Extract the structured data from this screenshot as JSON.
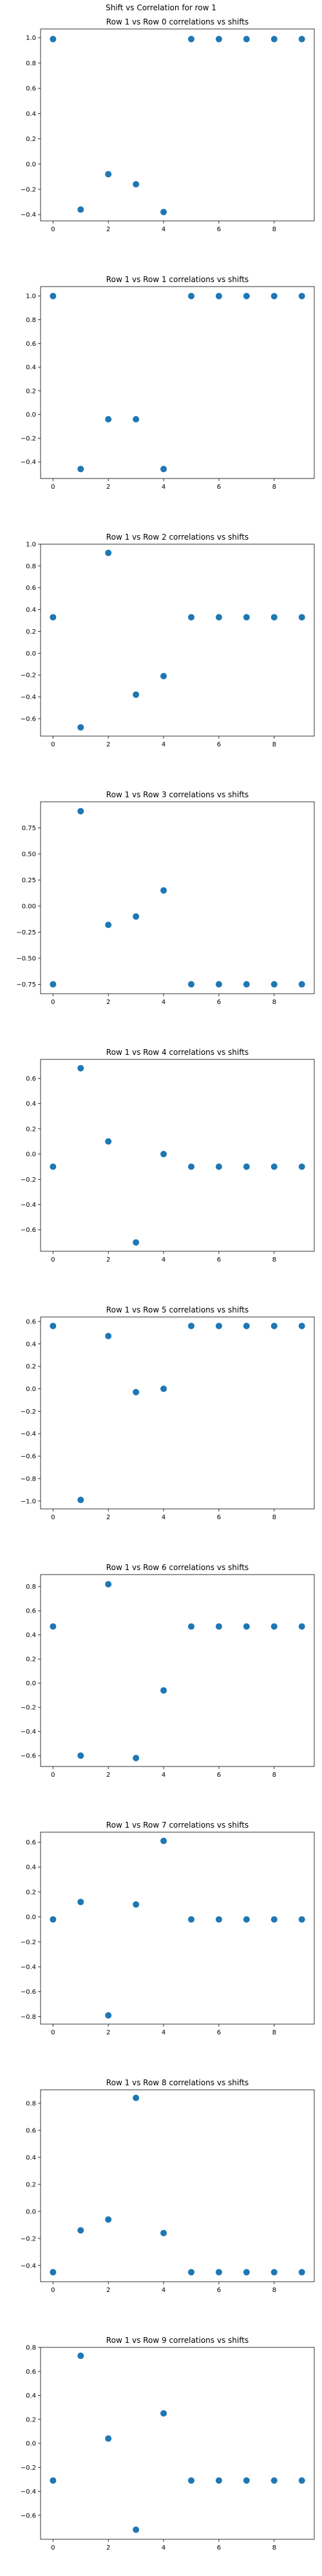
{
  "figure": {
    "suptitle": "Shift vs Correlation for row 1",
    "marker_color": "#1f77b4"
  },
  "chart_data": [
    {
      "type": "scatter",
      "title": "Row 1 vs Row 0 correlations vs shifts",
      "x": [
        0,
        1,
        2,
        3,
        4,
        5,
        6,
        7,
        8,
        9
      ],
      "y": [
        0.99,
        -0.36,
        -0.08,
        -0.16,
        -0.38,
        0.99,
        0.99,
        0.99,
        0.99,
        0.99
      ],
      "xlim": [
        -0.45,
        9.45
      ],
      "ylim": [
        -0.45,
        1.07
      ],
      "xticks": [
        0,
        2,
        4,
        6,
        8
      ],
      "yticks": [
        -0.4,
        -0.2,
        0.0,
        0.2,
        0.4,
        0.6,
        0.8,
        1.0
      ],
      "ytick_labels": [
        "−0.4",
        "−0.2",
        "0.0",
        "0.2",
        "0.4",
        "0.6",
        "0.8",
        "1.0"
      ],
      "grid": false
    },
    {
      "type": "scatter",
      "title": "Row 1 vs Row 1 correlations vs shifts",
      "x": [
        0,
        1,
        2,
        3,
        4,
        5,
        6,
        7,
        8,
        9
      ],
      "y": [
        1.0,
        -0.46,
        -0.04,
        -0.04,
        -0.46,
        1.0,
        1.0,
        1.0,
        1.0,
        1.0
      ],
      "xlim": [
        -0.45,
        9.45
      ],
      "ylim": [
        -0.54,
        1.08
      ],
      "xticks": [
        0,
        2,
        4,
        6,
        8
      ],
      "yticks": [
        -0.4,
        -0.2,
        0.0,
        0.2,
        0.4,
        0.6,
        0.8,
        1.0
      ],
      "ytick_labels": [
        "−0.4",
        "−0.2",
        "0.0",
        "0.2",
        "0.4",
        "0.6",
        "0.8",
        "1.0"
      ],
      "grid": false
    },
    {
      "type": "scatter",
      "title": "Row 1 vs Row 2 correlations vs shifts",
      "x": [
        0,
        1,
        2,
        3,
        4,
        5,
        6,
        7,
        8,
        9
      ],
      "y": [
        0.33,
        -0.68,
        0.92,
        -0.38,
        -0.21,
        0.33,
        0.33,
        0.33,
        0.33,
        0.33
      ],
      "xlim": [
        -0.45,
        9.45
      ],
      "ylim": [
        -0.76,
        1.0
      ],
      "xticks": [
        0,
        2,
        4,
        6,
        8
      ],
      "yticks": [
        -0.6,
        -0.4,
        -0.2,
        0.0,
        0.2,
        0.4,
        0.6,
        0.8,
        1.0
      ],
      "ytick_labels": [
        "−0.6",
        "−0.4",
        "−0.2",
        "0.0",
        "0.2",
        "0.4",
        "0.6",
        "0.8",
        "1.0"
      ],
      "grid": false
    },
    {
      "type": "scatter",
      "title": "Row 1 vs Row 3 correlations vs shifts",
      "x": [
        0,
        1,
        2,
        3,
        4,
        5,
        6,
        7,
        8,
        9
      ],
      "y": [
        -0.75,
        0.91,
        -0.18,
        -0.1,
        0.15,
        -0.75,
        -0.75,
        -0.75,
        -0.75,
        -0.75
      ],
      "xlim": [
        -0.45,
        9.45
      ],
      "ylim": [
        -0.84,
        1.0
      ],
      "xticks": [
        0,
        2,
        4,
        6,
        8
      ],
      "yticks": [
        -0.75,
        -0.5,
        -0.25,
        0.0,
        0.25,
        0.5,
        0.75
      ],
      "ytick_labels": [
        "−0.75",
        "−0.50",
        "−0.25",
        "0.00",
        "0.25",
        "0.50",
        "0.75"
      ],
      "grid": false
    },
    {
      "type": "scatter",
      "title": "Row 1 vs Row 4 correlations vs shifts",
      "x": [
        0,
        1,
        2,
        3,
        4,
        5,
        6,
        7,
        8,
        9
      ],
      "y": [
        -0.1,
        0.68,
        0.1,
        -0.7,
        0.0,
        -0.1,
        -0.1,
        -0.1,
        -0.1,
        -0.1
      ],
      "xlim": [
        -0.45,
        9.45
      ],
      "ylim": [
        -0.77,
        0.75
      ],
      "xticks": [
        0,
        2,
        4,
        6,
        8
      ],
      "yticks": [
        -0.6,
        -0.4,
        -0.2,
        0.0,
        0.2,
        0.4,
        0.6
      ],
      "ytick_labels": [
        "−0.6",
        "−0.4",
        "−0.2",
        "0.0",
        "0.2",
        "0.4",
        "0.6"
      ],
      "grid": false
    },
    {
      "type": "scatter",
      "title": "Row 1 vs Row 5 correlations vs shifts",
      "x": [
        0,
        1,
        2,
        3,
        4,
        5,
        6,
        7,
        8,
        9
      ],
      "y": [
        0.56,
        -0.99,
        0.47,
        -0.03,
        0.0,
        0.56,
        0.56,
        0.56,
        0.56,
        0.56
      ],
      "xlim": [
        -0.45,
        9.45
      ],
      "ylim": [
        -1.07,
        0.64
      ],
      "xticks": [
        0,
        2,
        4,
        6,
        8
      ],
      "yticks": [
        -1.0,
        -0.8,
        -0.6,
        -0.4,
        -0.2,
        0.0,
        0.2,
        0.4,
        0.6
      ],
      "ytick_labels": [
        "−1.0",
        "−0.8",
        "−0.6",
        "−0.4",
        "−0.2",
        "0.0",
        "0.2",
        "0.4",
        "0.6"
      ],
      "grid": false
    },
    {
      "type": "scatter",
      "title": "Row 1 vs Row 6 correlations vs shifts",
      "x": [
        0,
        1,
        2,
        3,
        4,
        5,
        6,
        7,
        8,
        9
      ],
      "y": [
        0.47,
        -0.6,
        0.82,
        -0.62,
        -0.06,
        0.47,
        0.47,
        0.47,
        0.47,
        0.47
      ],
      "xlim": [
        -0.45,
        9.45
      ],
      "ylim": [
        -0.69,
        0.9
      ],
      "xticks": [
        0,
        2,
        4,
        6,
        8
      ],
      "yticks": [
        -0.6,
        -0.4,
        -0.2,
        0.0,
        0.2,
        0.4,
        0.6,
        0.8
      ],
      "ytick_labels": [
        "−0.6",
        "−0.4",
        "−0.2",
        "0.0",
        "0.2",
        "0.4",
        "0.6",
        "0.8"
      ],
      "grid": false
    },
    {
      "type": "scatter",
      "title": "Row 1 vs Row 7 correlations vs shifts",
      "x": [
        0,
        1,
        2,
        3,
        4,
        5,
        6,
        7,
        8,
        9
      ],
      "y": [
        -0.02,
        0.12,
        -0.79,
        0.1,
        0.61,
        -0.02,
        -0.02,
        -0.02,
        -0.02,
        -0.02
      ],
      "xlim": [
        -0.45,
        9.45
      ],
      "ylim": [
        -0.86,
        0.68
      ],
      "xticks": [
        0,
        2,
        4,
        6,
        8
      ],
      "yticks": [
        -0.8,
        -0.6,
        -0.4,
        -0.2,
        0.0,
        0.2,
        0.4,
        0.6
      ],
      "ytick_labels": [
        "−0.8",
        "−0.6",
        "−0.4",
        "−0.2",
        "0.0",
        "0.2",
        "0.4",
        "0.6"
      ],
      "grid": false
    },
    {
      "type": "scatter",
      "title": "Row 1 vs Row 8 correlations vs shifts",
      "x": [
        0,
        1,
        2,
        3,
        4,
        5,
        6,
        7,
        8,
        9
      ],
      "y": [
        -0.45,
        -0.14,
        -0.06,
        0.84,
        -0.16,
        -0.45,
        -0.45,
        -0.45,
        -0.45,
        -0.45
      ],
      "xlim": [
        -0.45,
        9.45
      ],
      "ylim": [
        -0.52,
        0.9
      ],
      "xticks": [
        0,
        2,
        4,
        6,
        8
      ],
      "yticks": [
        -0.4,
        -0.2,
        0.0,
        0.2,
        0.4,
        0.6,
        0.8
      ],
      "ytick_labels": [
        "−0.4",
        "−0.2",
        "0.0",
        "0.2",
        "0.4",
        "0.6",
        "0.8"
      ],
      "grid": false
    },
    {
      "type": "scatter",
      "title": "Row 1 vs Row 9 correlations vs shifts",
      "x": [
        0,
        1,
        2,
        3,
        4,
        5,
        6,
        7,
        8,
        9
      ],
      "y": [
        -0.31,
        0.73,
        0.04,
        -0.72,
        0.25,
        -0.31,
        -0.31,
        -0.31,
        -0.31,
        -0.31
      ],
      "xlim": [
        -0.45,
        9.45
      ],
      "ylim": [
        -0.8,
        0.8
      ],
      "xticks": [
        0,
        2,
        4,
        6,
        8
      ],
      "yticks": [
        -0.6,
        -0.4,
        -0.2,
        0.0,
        0.2,
        0.4,
        0.6,
        0.8
      ],
      "ytick_labels": [
        "−0.6",
        "−0.4",
        "−0.2",
        "0.0",
        "0.2",
        "0.4",
        "0.6",
        "0.8"
      ],
      "grid": false
    }
  ]
}
